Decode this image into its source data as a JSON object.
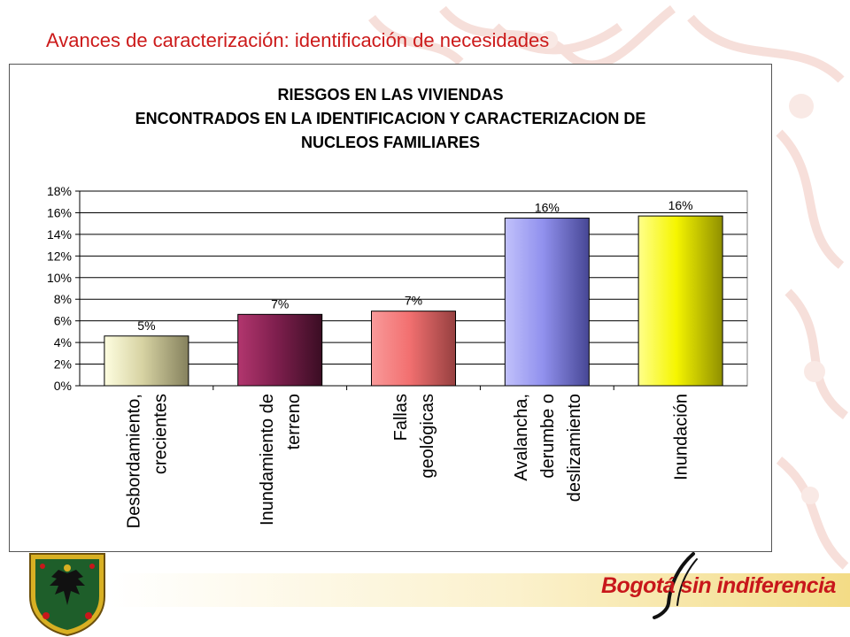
{
  "slide": {
    "title": "Avances de caracterización: identificación de necesidades",
    "logo_text": "Bogotá sin indiferencia",
    "accent_color": "#cc1a1a"
  },
  "chart_data": {
    "type": "bar",
    "title_lines": [
      "RIESGOS EN LAS VIVIENDAS",
      "ENCONTRADOS EN LA IDENTIFICACION Y CARACTERIZACION DE",
      "NUCLEOS FAMILIARES"
    ],
    "categories": [
      [
        "Desbordamiento,",
        "crecientes"
      ],
      [
        "Inundamiento de",
        "terreno"
      ],
      [
        "Fallas",
        "geológicas"
      ],
      [
        "Avalancha,",
        "derumbe o",
        "deslizamiento"
      ],
      [
        "Inundación"
      ]
    ],
    "values": [
      4.6,
      6.6,
      6.9,
      15.5,
      15.7
    ],
    "data_labels": [
      "5%",
      "7%",
      "7%",
      "16%",
      "16%"
    ],
    "y_ticks": [
      "0%",
      "2%",
      "4%",
      "6%",
      "8%",
      "10%",
      "12%",
      "14%",
      "16%",
      "18%"
    ],
    "ylim": [
      0,
      18
    ],
    "grid": true,
    "bar_colors": [
      [
        "#fefee0",
        "#d7d3a3",
        "#85815d"
      ],
      [
        "#b2366e",
        "#7f1f4e",
        "#3a0d23"
      ],
      [
        "#f99a9a",
        "#f27070",
        "#964040"
      ],
      [
        "#c1c1fb",
        "#9191ee",
        "#474795"
      ],
      [
        "#ffff8a",
        "#f5f500",
        "#8f8f00"
      ]
    ]
  }
}
